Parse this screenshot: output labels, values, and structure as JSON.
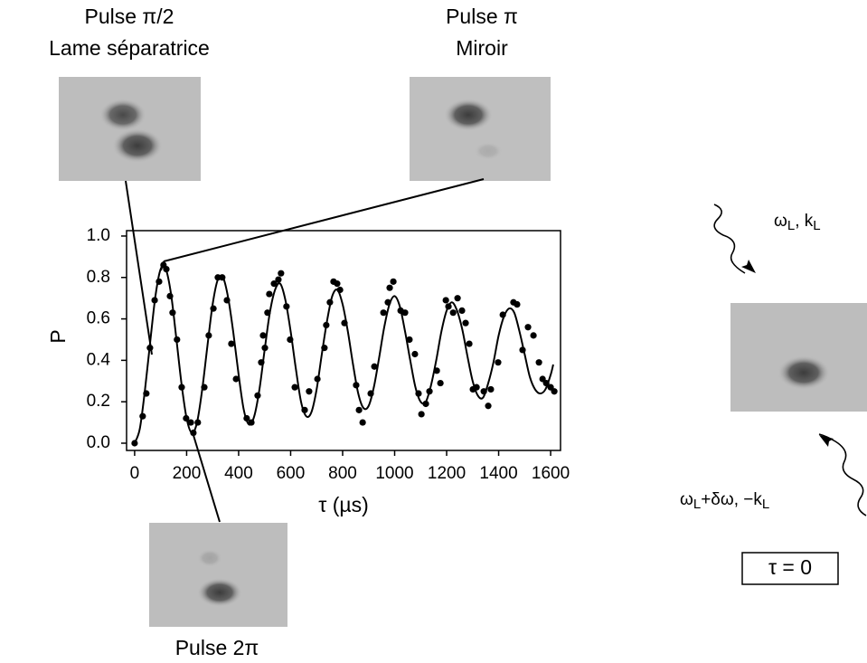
{
  "chart_data": {
    "type": "scatter",
    "x_label": "τ (µs)",
    "y_label": "P",
    "xlim": [
      -31,
      1638
    ],
    "ylim": [
      -0.035,
      1.026
    ],
    "xticks": [
      0,
      200,
      400,
      600,
      800,
      1000,
      1200,
      1400,
      1600
    ],
    "yticks": [
      {
        "value": 0,
        "label": "0.0"
      },
      {
        "value": 0.2,
        "label": "0.2"
      },
      {
        "value": 0.4,
        "label": "0.4"
      },
      {
        "value": 0.6,
        "label": "0.6"
      },
      {
        "value": 0.8,
        "label": "0.8"
      },
      {
        "value": 1,
        "label": "1.0"
      }
    ],
    "series": [
      {
        "type": "scatter",
        "color": "#000000",
        "x": [
          0,
          31,
          45,
          59,
          77,
          94,
          111,
          122,
          136,
          146,
          163,
          181,
          198,
          216,
          226,
          243,
          268,
          285,
          303,
          320,
          337,
          355,
          372,
          390,
          431,
          449,
          473,
          487,
          494,
          501,
          511,
          518,
          536,
          553,
          563,
          584,
          598,
          616,
          654,
          671,
          703,
          730,
          737,
          751,
          765,
          779,
          790,
          807,
          852,
          863,
          877,
          908,
          922,
          957,
          974,
          981,
          995,
          1023,
          1040,
          1057,
          1078,
          1092,
          1103,
          1120,
          1134,
          1162,
          1176,
          1197,
          1207,
          1225,
          1242,
          1259,
          1273,
          1287,
          1301,
          1315,
          1343,
          1360,
          1370,
          1398,
          1416,
          1457,
          1471,
          1492,
          1513,
          1534,
          1555,
          1569,
          1583,
          1600,
          1614
        ],
        "values": [
          0.0,
          0.13,
          0.24,
          0.46,
          0.69,
          0.78,
          0.86,
          0.84,
          0.71,
          0.63,
          0.5,
          0.27,
          0.12,
          0.1,
          0.05,
          0.1,
          0.27,
          0.52,
          0.65,
          0.8,
          0.8,
          0.69,
          0.48,
          0.31,
          0.12,
          0.1,
          0.23,
          0.39,
          0.52,
          0.46,
          0.63,
          0.72,
          0.77,
          0.79,
          0.82,
          0.66,
          0.5,
          0.27,
          0.16,
          0.25,
          0.31,
          0.46,
          0.57,
          0.68,
          0.78,
          0.77,
          0.74,
          0.58,
          0.28,
          0.16,
          0.1,
          0.24,
          0.37,
          0.63,
          0.68,
          0.75,
          0.78,
          0.64,
          0.63,
          0.5,
          0.43,
          0.24,
          0.14,
          0.19,
          0.25,
          0.35,
          0.29,
          0.69,
          0.66,
          0.63,
          0.7,
          0.64,
          0.58,
          0.48,
          0.26,
          0.27,
          0.25,
          0.18,
          0.26,
          0.39,
          0.62,
          0.68,
          0.67,
          0.45,
          0.56,
          0.52,
          0.39,
          0.31,
          0.29,
          0.27,
          0.25
        ]
      },
      {
        "type": "line",
        "color": "#000000",
        "x": [
          0,
          20,
          40,
          60,
          80,
          100,
          120,
          140,
          160,
          180,
          200,
          220,
          240,
          260,
          280,
          300,
          320,
          340,
          360,
          380,
          400,
          420,
          440,
          460,
          480,
          500,
          520,
          540,
          560,
          580,
          600,
          620,
          640,
          660,
          680,
          700,
          720,
          740,
          760,
          780,
          800,
          820,
          840,
          860,
          880,
          900,
          920,
          940,
          960,
          980,
          1000,
          1020,
          1040,
          1060,
          1080,
          1100,
          1120,
          1140,
          1160,
          1180,
          1200,
          1220,
          1240,
          1260,
          1280,
          1300,
          1320,
          1340,
          1360,
          1380,
          1400,
          1420,
          1440,
          1460,
          1480,
          1500,
          1520,
          1540,
          1560,
          1580,
          1600,
          1610
        ],
        "values": [
          0,
          0.07,
          0.26,
          0.49,
          0.71,
          0.84,
          0.84,
          0.72,
          0.51,
          0.29,
          0.12,
          0.05,
          0.1,
          0.26,
          0.47,
          0.67,
          0.79,
          0.8,
          0.7,
          0.53,
          0.33,
          0.16,
          0.09,
          0.13,
          0.26,
          0.45,
          0.63,
          0.74,
          0.77,
          0.69,
          0.54,
          0.36,
          0.2,
          0.13,
          0.15,
          0.26,
          0.43,
          0.59,
          0.71,
          0.74,
          0.67,
          0.54,
          0.38,
          0.24,
          0.17,
          0.18,
          0.27,
          0.41,
          0.56,
          0.67,
          0.71,
          0.66,
          0.54,
          0.4,
          0.27,
          0.2,
          0.2,
          0.28,
          0.4,
          0.54,
          0.64,
          0.68,
          0.64,
          0.55,
          0.42,
          0.3,
          0.23,
          0.22,
          0.29,
          0.39,
          0.52,
          0.61,
          0.65,
          0.63,
          0.54,
          0.43,
          0.32,
          0.26,
          0.24,
          0.26,
          0.33,
          0.38
        ]
      }
    ]
  },
  "annotations": {
    "pulse_half": [
      "Pulse π/2",
      "Lame séparatrice"
    ],
    "pulse_pi": [
      "Pulse π",
      "Miroir"
    ],
    "pulse_2pi": "Pulse 2π",
    "beam_top": [
      "ω",
      "L",
      ", k",
      "L"
    ],
    "beam_bottom": [
      "ω",
      "L",
      "+δω, −k",
      "L"
    ],
    "time_box": "τ = 0"
  }
}
